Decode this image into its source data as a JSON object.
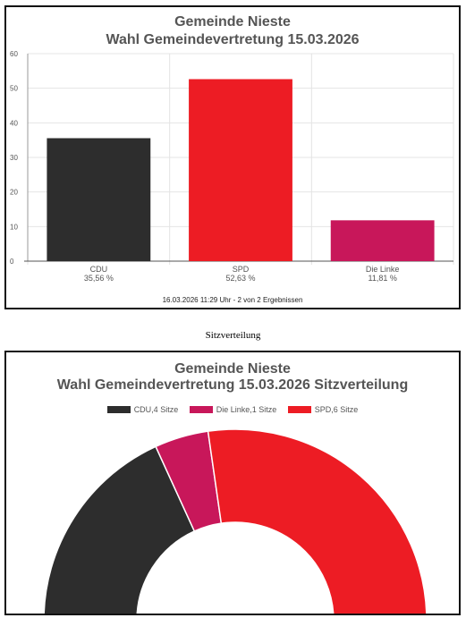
{
  "bar_panel": {
    "title_line1": "Gemeinde Nieste",
    "title_line2": "Wahl Gemeindevertretung 15.03.2026",
    "footer": "16.03.2026 11:29 Uhr - 2 von 2 Ergebnissen"
  },
  "section_caption": "Sitzverteilung",
  "seat_panel": {
    "title_line1": "Gemeinde Nieste",
    "title_line2": "Wahl Gemeindevertretung 15.03.2026 Sitzverteilung"
  },
  "chart_data": [
    {
      "type": "bar",
      "title": "Gemeinde Nieste Wahl Gemeindevertretung 15.03.2026",
      "categories": [
        "CDU",
        "SPD",
        "Die Linke"
      ],
      "values": [
        35.56,
        52.63,
        11.81
      ],
      "value_labels": [
        "35,56 %",
        "52,63 %",
        "11,81 %"
      ],
      "colors": [
        "#2d2d2d",
        "#ed1c24",
        "#c8175a"
      ],
      "ylim": [
        0,
        60
      ],
      "yticks": [
        0,
        10,
        20,
        30,
        40,
        50,
        60
      ],
      "grid": true
    },
    {
      "type": "pie",
      "variant": "half-donut",
      "title": "Gemeinde Nieste Wahl Gemeindevertretung 15.03.2026 Sitzverteilung",
      "legend": [
        "CDU,4 Sitze",
        "Die Linke,1 Sitze",
        "SPD,6 Sitze"
      ],
      "legend_placement": "top",
      "slices": [
        {
          "name": "CDU",
          "value": 4,
          "color": "#2d2d2d"
        },
        {
          "name": "Die Linke",
          "value": 1,
          "color": "#c8175a"
        },
        {
          "name": "SPD",
          "value": 6,
          "color": "#ed1c24"
        }
      ]
    }
  ]
}
